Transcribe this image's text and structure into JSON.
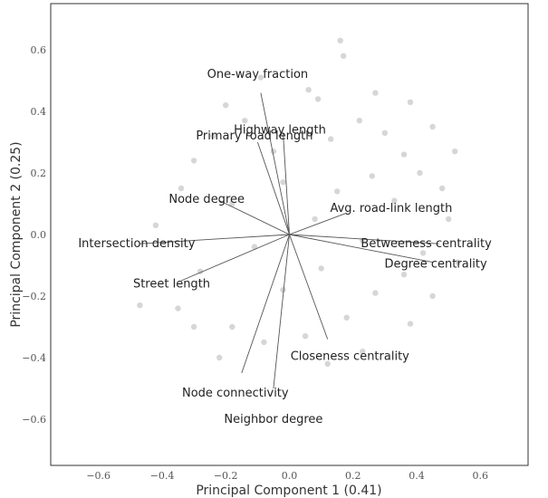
{
  "chart_data": {
    "type": "scatter",
    "title": "",
    "xlabel": "Principal Component 1 (0.41)",
    "ylabel": "Principal Component 2 (0.25)",
    "xlim": [
      -0.75,
      0.75
    ],
    "ylim": [
      -0.75,
      0.75
    ],
    "grid": false,
    "x_ticks": [
      {
        "value": -0.6,
        "label": "−0.6"
      },
      {
        "value": -0.4,
        "label": "−0.4"
      },
      {
        "value": -0.2,
        "label": "−0.2"
      },
      {
        "value": 0.0,
        "label": "0.0"
      },
      {
        "value": 0.2,
        "label": "0.2"
      },
      {
        "value": 0.4,
        "label": "0.4"
      },
      {
        "value": 0.6,
        "label": "0.6"
      }
    ],
    "y_ticks": [
      {
        "value": 0.6,
        "label": "0.6"
      },
      {
        "value": 0.4,
        "label": "0.4"
      },
      {
        "value": 0.2,
        "label": "0.2"
      },
      {
        "value": 0.0,
        "label": "0.0"
      },
      {
        "value": -0.2,
        "label": "−0.2"
      },
      {
        "value": -0.4,
        "label": "−0.4"
      },
      {
        "value": -0.6,
        "label": "−0.6"
      }
    ],
    "point_color": "#c8c8cc",
    "vector_color": "#555555",
    "points": [
      [
        0.16,
        0.63
      ],
      [
        0.17,
        0.58
      ],
      [
        -0.09,
        0.51
      ],
      [
        0.06,
        0.47
      ],
      [
        0.27,
        0.46
      ],
      [
        0.38,
        0.43
      ],
      [
        -0.2,
        0.42
      ],
      [
        0.09,
        0.44
      ],
      [
        -0.14,
        0.37
      ],
      [
        0.22,
        0.37
      ],
      [
        0.45,
        0.35
      ],
      [
        0.3,
        0.33
      ],
      [
        -0.24,
        0.32
      ],
      [
        0.13,
        0.31
      ],
      [
        0.52,
        0.27
      ],
      [
        0.36,
        0.26
      ],
      [
        -0.3,
        0.24
      ],
      [
        -0.05,
        0.27
      ],
      [
        0.41,
        0.2
      ],
      [
        0.26,
        0.19
      ],
      [
        0.48,
        0.15
      ],
      [
        -0.34,
        0.15
      ],
      [
        -0.02,
        0.17
      ],
      [
        0.15,
        0.14
      ],
      [
        0.33,
        0.11
      ],
      [
        -0.18,
        0.1
      ],
      [
        0.5,
        0.05
      ],
      [
        0.08,
        0.05
      ],
      [
        -0.42,
        0.03
      ],
      [
        0.42,
        -0.06
      ],
      [
        0.23,
        -0.02
      ],
      [
        -0.11,
        -0.04
      ],
      [
        0.53,
        -0.09
      ],
      [
        0.36,
        -0.13
      ],
      [
        -0.28,
        -0.12
      ],
      [
        0.1,
        -0.11
      ],
      [
        -0.47,
        -0.23
      ],
      [
        0.45,
        -0.2
      ],
      [
        0.27,
        -0.19
      ],
      [
        -0.35,
        -0.24
      ],
      [
        -0.02,
        -0.18
      ],
      [
        0.18,
        -0.27
      ],
      [
        -0.18,
        -0.3
      ],
      [
        0.38,
        -0.29
      ],
      [
        0.05,
        -0.33
      ],
      [
        -0.08,
        -0.35
      ],
      [
        0.23,
        -0.38
      ],
      [
        -0.3,
        -0.3
      ],
      [
        0.12,
        -0.42
      ],
      [
        -0.22,
        -0.4
      ]
    ],
    "vectors": [
      {
        "name": "One-way fraction",
        "x": -0.09,
        "y": 0.46,
        "label_x": -0.1,
        "label_y": 0.52
      },
      {
        "name": "Highway length",
        "x": -0.02,
        "y": 0.33,
        "label_x": -0.03,
        "label_y": 0.34
      },
      {
        "name": "Primary road length",
        "x": -0.1,
        "y": 0.3,
        "label_x": -0.11,
        "label_y": 0.32
      },
      {
        "name": "Node degree",
        "x": -0.22,
        "y": 0.11,
        "label_x": -0.26,
        "label_y": 0.115
      },
      {
        "name": "Avg. road-link length",
        "x": 0.18,
        "y": 0.07,
        "label_x": 0.32,
        "label_y": 0.085
      },
      {
        "name": "Intersection density",
        "x": -0.47,
        "y": -0.03,
        "label_x": -0.48,
        "label_y": -0.03
      },
      {
        "name": "Betweeness centrality",
        "x": 0.47,
        "y": -0.03,
        "label_x": 0.43,
        "label_y": -0.03
      },
      {
        "name": "Degree centrality",
        "x": 0.45,
        "y": -0.09,
        "label_x": 0.46,
        "label_y": -0.095
      },
      {
        "name": "Street length",
        "x": -0.34,
        "y": -0.15,
        "label_x": -0.37,
        "label_y": -0.16
      },
      {
        "name": "Closeness centrality",
        "x": 0.12,
        "y": -0.34,
        "label_x": 0.19,
        "label_y": -0.395
      },
      {
        "name": "Node connectivity",
        "x": -0.15,
        "y": -0.45,
        "label_x": -0.17,
        "label_y": -0.515
      },
      {
        "name": "Neighbor degree",
        "x": -0.05,
        "y": -0.5,
        "label_x": -0.05,
        "label_y": -0.6
      }
    ]
  }
}
